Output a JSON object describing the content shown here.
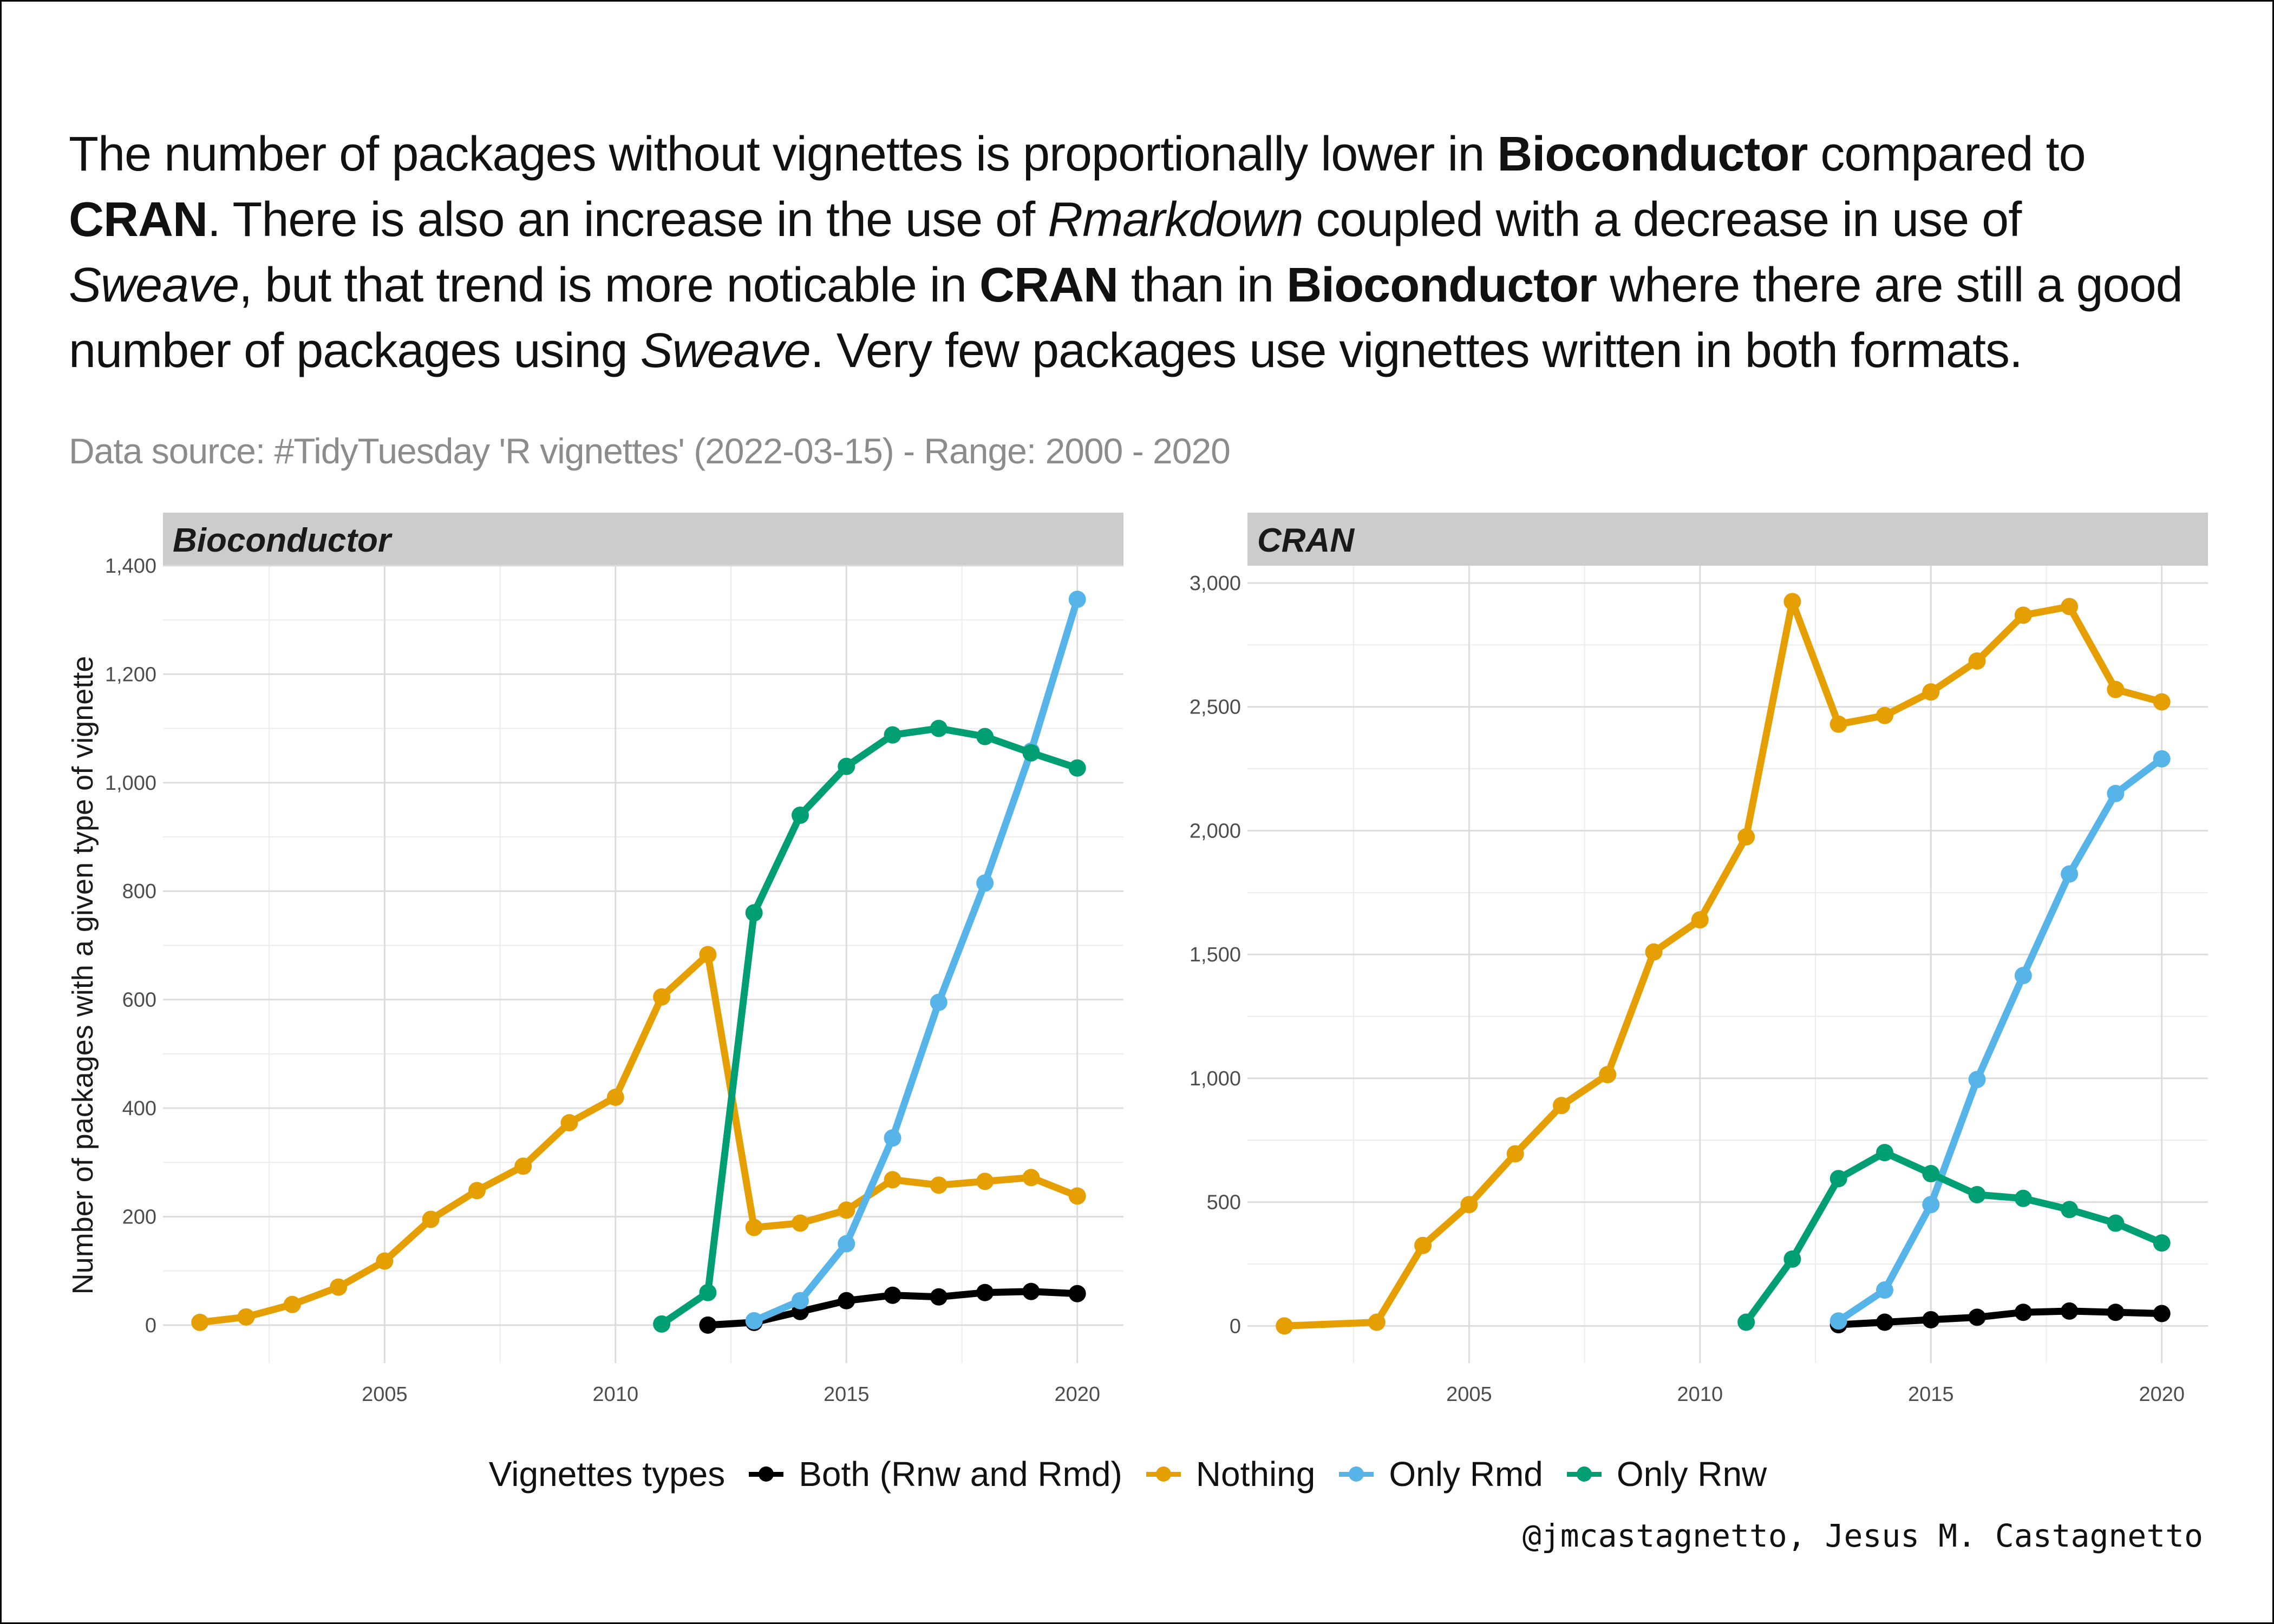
{
  "title": {
    "segments": [
      {
        "text": "The number of packages without vignettes is proportionally lower in ",
        "style": "normal"
      },
      {
        "text": "Bioconductor",
        "style": "bold"
      },
      {
        "text": " compared to ",
        "style": "normal"
      },
      {
        "text": "CRAN",
        "style": "bold"
      },
      {
        "text": ". There is also an increase in the use of ",
        "style": "normal"
      },
      {
        "text": "Rmarkdown",
        "style": "italic"
      },
      {
        "text": " coupled with a decrease in use of ",
        "style": "normal"
      },
      {
        "text": "Sweave",
        "style": "italic"
      },
      {
        "text": ", but that trend is more noticable in ",
        "style": "normal"
      },
      {
        "text": "CRAN",
        "style": "bold"
      },
      {
        "text": " than in ",
        "style": "normal"
      },
      {
        "text": "Bioconductor",
        "style": "bold"
      },
      {
        "text": " where there are still a good number of packages using ",
        "style": "normal"
      },
      {
        "text": "Sweave",
        "style": "italic"
      },
      {
        "text": ". Very few packages use vignettes written in both formats.",
        "style": "normal"
      }
    ]
  },
  "subtitle": "Data source: #TidyTuesday 'R vignettes' (2022-03-15) - Range: 2000 - 2020",
  "caption": "@jmcastagnetto, Jesus M. Castagnetto",
  "legend": {
    "title": "Vignettes types",
    "items": [
      {
        "label": "Both (Rnw and Rmd)",
        "color": "#000000"
      },
      {
        "label": "Nothing",
        "color": "#E69F00"
      },
      {
        "label": "Only Rmd",
        "color": "#56B4E9"
      },
      {
        "label": "Only Rnw",
        "color": "#009E73"
      }
    ]
  },
  "chart_data": [
    {
      "type": "line",
      "title": "Bioconductor",
      "ylabel": "Number of packages with a given type of vignette",
      "xlabel": "",
      "xlim": [
        2000.2,
        2021
      ],
      "ylim": [
        -70,
        1400
      ],
      "x_ticks": [
        2005,
        2010,
        2015,
        2020
      ],
      "y_ticks": [
        0,
        200,
        400,
        600,
        800,
        1000,
        1200,
        1400
      ],
      "y_tick_labels": [
        "0",
        "200",
        "400",
        "600",
        "800",
        "1,000",
        "1,200",
        "1,400"
      ],
      "grid": true,
      "legend": "bottom",
      "series": [
        {
          "name": "Both (Rnw and Rmd)",
          "color": "#000000",
          "x": [
            2012,
            2013,
            2014,
            2015,
            2016,
            2017,
            2018,
            2019,
            2020
          ],
          "y": [
            0,
            5,
            25,
            45,
            55,
            52,
            60,
            62,
            58
          ]
        },
        {
          "name": "Nothing",
          "color": "#E69F00",
          "x": [
            2001,
            2002,
            2003,
            2004,
            2005,
            2006,
            2007,
            2008,
            2009,
            2010,
            2011,
            2012,
            2013,
            2014,
            2015,
            2016,
            2017,
            2018,
            2019,
            2020
          ],
          "y": [
            5,
            15,
            38,
            70,
            118,
            195,
            248,
            293,
            373,
            420,
            605,
            683,
            180,
            188,
            212,
            268,
            258,
            265,
            272,
            238
          ]
        },
        {
          "name": "Only Rmd",
          "color": "#56B4E9",
          "x": [
            2013,
            2014,
            2015,
            2016,
            2017,
            2018,
            2019,
            2020
          ],
          "y": [
            8,
            45,
            150,
            345,
            595,
            815,
            1058,
            1338
          ]
        },
        {
          "name": "Only Rnw",
          "color": "#009E73",
          "x": [
            2011,
            2012,
            2013,
            2014,
            2015,
            2016,
            2017,
            2018,
            2019,
            2020
          ],
          "y": [
            2,
            60,
            760,
            940,
            1030,
            1088,
            1100,
            1085,
            1055,
            1027
          ]
        }
      ]
    },
    {
      "type": "line",
      "title": "CRAN",
      "ylabel": "",
      "xlabel": "",
      "xlim": [
        2000.2,
        2021
      ],
      "ylim": [
        -150,
        3070
      ],
      "x_ticks": [
        2005,
        2010,
        2015,
        2020
      ],
      "y_ticks": [
        0,
        500,
        1000,
        1500,
        2000,
        2500,
        3000
      ],
      "y_tick_labels": [
        "0",
        "500",
        "1,000",
        "1,500",
        "2,000",
        "2,500",
        "3,000"
      ],
      "grid": true,
      "legend": "bottom",
      "series": [
        {
          "name": "Both (Rnw and Rmd)",
          "color": "#000000",
          "x": [
            2013,
            2014,
            2015,
            2016,
            2017,
            2018,
            2019,
            2020
          ],
          "y": [
            5,
            15,
            25,
            35,
            55,
            60,
            55,
            50
          ]
        },
        {
          "name": "Nothing",
          "color": "#E69F00",
          "x": [
            2001,
            2003,
            2004,
            2005,
            2006,
            2007,
            2008,
            2009,
            2010,
            2011,
            2012,
            2013,
            2014,
            2015,
            2016,
            2017,
            2018,
            2019,
            2020
          ],
          "y": [
            0,
            15,
            325,
            490,
            695,
            890,
            1015,
            1510,
            1640,
            1975,
            2925,
            2430,
            2465,
            2560,
            2685,
            2870,
            2905,
            2570,
            2520
          ]
        },
        {
          "name": "Only Rmd",
          "color": "#56B4E9",
          "x": [
            2013,
            2014,
            2015,
            2016,
            2017,
            2018,
            2019,
            2020
          ],
          "y": [
            20,
            145,
            490,
            995,
            1415,
            1825,
            2150,
            2290
          ]
        },
        {
          "name": "Only Rnw",
          "color": "#009E73",
          "x": [
            2011,
            2012,
            2013,
            2014,
            2015,
            2016,
            2017,
            2018,
            2019,
            2020
          ],
          "y": [
            15,
            270,
            595,
            700,
            615,
            530,
            515,
            470,
            415,
            335
          ]
        }
      ]
    }
  ]
}
